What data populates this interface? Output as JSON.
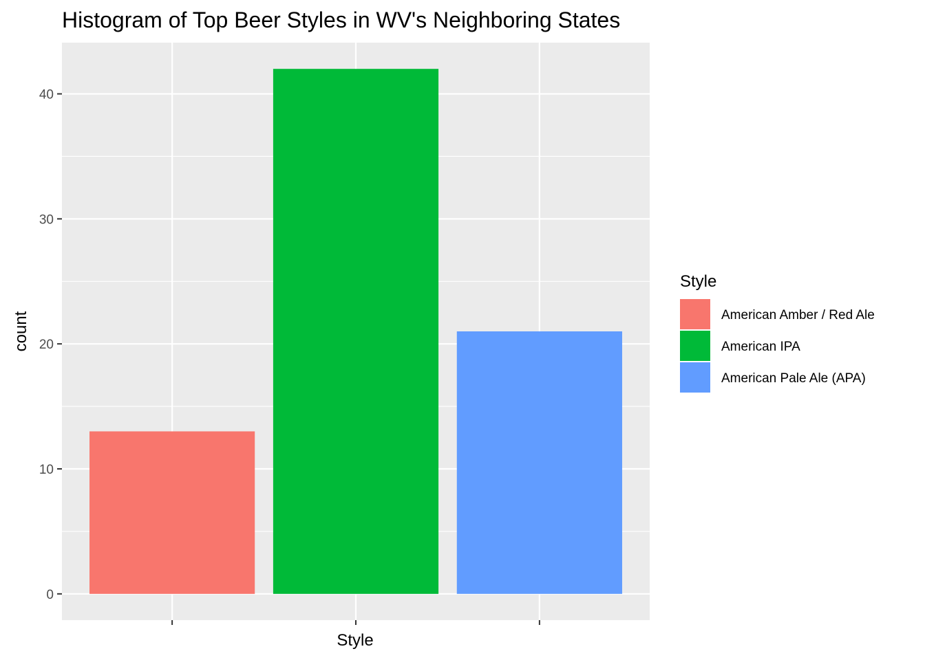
{
  "chart_data": {
    "type": "bar",
    "title": "Histogram of Top Beer Styles in WV's Neighboring States",
    "xlabel": "Style",
    "ylabel": "count",
    "categories": [
      "American Amber / Red Ale",
      "American IPA",
      "American Pale Ale (APA)"
    ],
    "values": [
      13,
      42,
      21
    ],
    "colors": [
      "#F8766D",
      "#00BA38",
      "#619CFF"
    ],
    "ylim": [
      -2.1,
      44.1
    ],
    "yticks": [
      0,
      10,
      20,
      30,
      40
    ],
    "x_tick_labels_shown": false,
    "grid": true,
    "panel_background": "#EBEBEB",
    "grid_color": "#FFFFFF",
    "legend": {
      "title": "Style",
      "placement": "right",
      "entries": [
        "American Amber / Red Ale",
        "American IPA",
        "American Pale Ale (APA)"
      ]
    }
  }
}
